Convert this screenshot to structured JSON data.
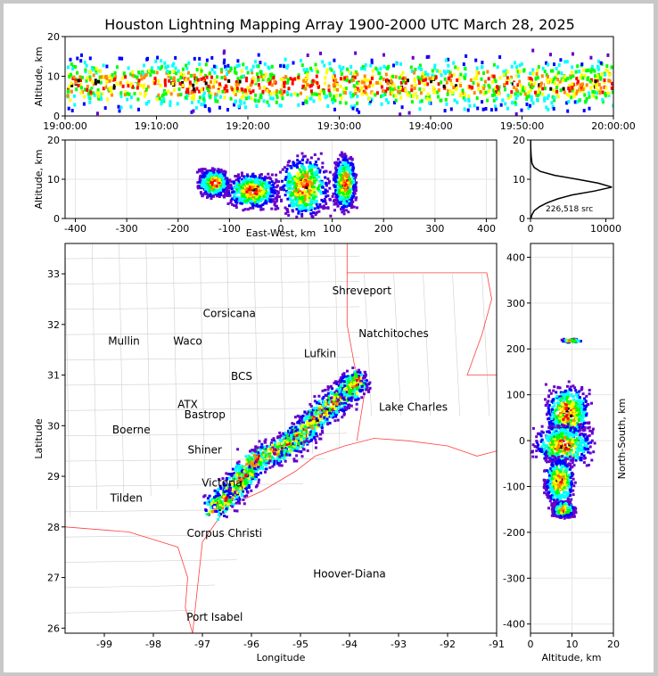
{
  "chart_data": [
    {
      "id": "time_altitude",
      "type": "heatmap",
      "title": "Houston Lightning Mapping Array 1900-2000 UTC March 28, 2025",
      "xlabel": "",
      "ylabel": "Altitude, km",
      "xlim": [
        "19:00:00",
        "20:00:00"
      ],
      "ylim": [
        0,
        20
      ],
      "x_tick_labels": [
        "19:00:00",
        "19:10:00",
        "19:20:00",
        "19:30:00",
        "19:40:00",
        "19:50:00",
        "20:00:00"
      ],
      "y_tick_labels": [
        "0",
        "10",
        "20"
      ],
      "core_altitude_km": 8,
      "density_colors": [
        "#6600cc",
        "#0000ff",
        "#00ffff",
        "#00ff00",
        "#ffff00",
        "#ff8800",
        "#ff0000",
        "#000000",
        "#ffffff"
      ]
    },
    {
      "id": "ew_altitude",
      "type": "heatmap",
      "xlabel": "East-West, km",
      "ylabel": "Altitude, km",
      "xlim": [
        -420,
        420
      ],
      "ylim": [
        0,
        20
      ],
      "x_tick_labels": [
        "-400",
        "-300",
        "-200",
        "-100",
        "0",
        "100",
        "200",
        "300",
        "400"
      ],
      "y_tick_labels": [
        "0",
        "10",
        "20"
      ],
      "clusters": [
        {
          "x": -130,
          "y": 9,
          "w": 35,
          "h": 4
        },
        {
          "x": -55,
          "y": 7,
          "w": 55,
          "h": 5
        },
        {
          "x": 45,
          "y": 8,
          "w": 55,
          "h": 9
        },
        {
          "x": 125,
          "y": 9,
          "w": 25,
          "h": 8
        }
      ]
    },
    {
      "id": "altitude_histogram",
      "type": "line",
      "xlim": [
        0,
        11000
      ],
      "ylim": [
        0,
        20
      ],
      "x_tick_labels": [
        "0",
        "10000"
      ],
      "y_tick_labels": [
        "0",
        "10",
        "20"
      ],
      "annotation": "226,518 src",
      "profile": [
        {
          "alt": 0,
          "n": 50
        },
        {
          "alt": 1,
          "n": 200
        },
        {
          "alt": 2,
          "n": 500
        },
        {
          "alt": 3,
          "n": 1200
        },
        {
          "alt": 4,
          "n": 2200
        },
        {
          "alt": 5,
          "n": 3600
        },
        {
          "alt": 6,
          "n": 5500
        },
        {
          "alt": 7,
          "n": 8500
        },
        {
          "alt": 8,
          "n": 10800
        },
        {
          "alt": 9,
          "n": 9000
        },
        {
          "alt": 10,
          "n": 6200
        },
        {
          "alt": 11,
          "n": 3200
        },
        {
          "alt": 12,
          "n": 1300
        },
        {
          "alt": 13,
          "n": 500
        },
        {
          "alt": 14,
          "n": 200
        },
        {
          "alt": 16,
          "n": 80
        },
        {
          "alt": 18,
          "n": 40
        },
        {
          "alt": 20,
          "n": 20
        }
      ]
    },
    {
      "id": "plan_view",
      "type": "heatmap",
      "xlabel": "Longitude",
      "ylabel": "Latitude",
      "xlim": [
        -99.8,
        -91
      ],
      "ylim": [
        25.9,
        33.6
      ],
      "x_tick_labels": [
        "-99",
        "-98",
        "-97",
        "-96",
        "-95",
        "-94",
        "-93",
        "-92",
        "-91"
      ],
      "y_tick_labels": [
        "26",
        "27",
        "28",
        "29",
        "30",
        "31",
        "32",
        "33"
      ],
      "storm_band": [
        {
          "lon": -96.75,
          "lat": 28.35
        },
        {
          "lon": -96.3,
          "lat": 28.8
        },
        {
          "lon": -95.95,
          "lat": 29.3
        },
        {
          "lon": -95.25,
          "lat": 29.6
        },
        {
          "lon": -94.9,
          "lat": 29.9
        },
        {
          "lon": -94.5,
          "lat": 30.3
        },
        {
          "lon": -94.0,
          "lat": 30.7
        },
        {
          "lon": -93.85,
          "lat": 30.9
        }
      ],
      "cities": [
        {
          "name": "Shreveport",
          "lon": -93.75,
          "lat": 32.6,
          "color": "#000000"
        },
        {
          "name": "Corsicana",
          "lon": -96.45,
          "lat": 32.15,
          "color": "#000000"
        },
        {
          "name": "Natchitoches",
          "lon": -93.1,
          "lat": 31.75,
          "color": "#000000"
        },
        {
          "name": "Mullin",
          "lon": -98.6,
          "lat": 31.6,
          "color": "#ff8c3c"
        },
        {
          "name": "Waco",
          "lon": -97.3,
          "lat": 31.6,
          "color": "#000000"
        },
        {
          "name": "Lufkin",
          "lon": -94.6,
          "lat": 31.35,
          "color": "#000000"
        },
        {
          "name": "BCS",
          "lon": -96.2,
          "lat": 30.9,
          "color": "#dd0000"
        },
        {
          "name": "ATX",
          "lon": -97.3,
          "lat": 30.35,
          "color": "#ff8c3c"
        },
        {
          "name": "Bastrop",
          "lon": -96.95,
          "lat": 30.15,
          "color": "#000000"
        },
        {
          "name": "Lake Charles",
          "lon": -92.7,
          "lat": 30.3,
          "color": "#000000"
        },
        {
          "name": "Boerne",
          "lon": -98.45,
          "lat": 29.85,
          "color": "#000000"
        },
        {
          "name": "Shiner",
          "lon": -96.95,
          "lat": 29.45,
          "color": "#000000"
        },
        {
          "name": "Victoria",
          "lon": -96.6,
          "lat": 28.8,
          "color": "#000000"
        },
        {
          "name": "Tilden",
          "lon": -98.55,
          "lat": 28.5,
          "color": "#000000"
        },
        {
          "name": "Corpus Christi",
          "lon": -96.55,
          "lat": 27.8,
          "color": "#000000"
        },
        {
          "name": "Hoover-Diana",
          "lon": -94.0,
          "lat": 27.0,
          "color": "#0000ee"
        },
        {
          "name": "Port Isabel",
          "lon": -96.75,
          "lat": 26.15,
          "color": "#000000"
        }
      ]
    },
    {
      "id": "altitude_northsouth",
      "type": "heatmap",
      "xlabel": "Altitude, km",
      "ylabel": "North-South, km",
      "xlim": [
        0,
        20
      ],
      "ylim": [
        -420,
        430
      ],
      "x_tick_labels": [
        "0",
        "10",
        "20"
      ],
      "y_tick_labels": [
        "-400",
        "-300",
        "-200",
        "-100",
        "0",
        "100",
        "200",
        "300",
        "400"
      ],
      "clusters": [
        {
          "x": 9,
          "y": 60,
          "w": 6,
          "h": 70
        },
        {
          "x": 8,
          "y": -10,
          "w": 8,
          "h": 50
        },
        {
          "x": 7,
          "y": -90,
          "w": 4,
          "h": 60
        },
        {
          "x": 8,
          "y": -150,
          "w": 3,
          "h": 20
        },
        {
          "x": 10,
          "y": 218,
          "w": 3,
          "h": 4
        }
      ]
    }
  ]
}
